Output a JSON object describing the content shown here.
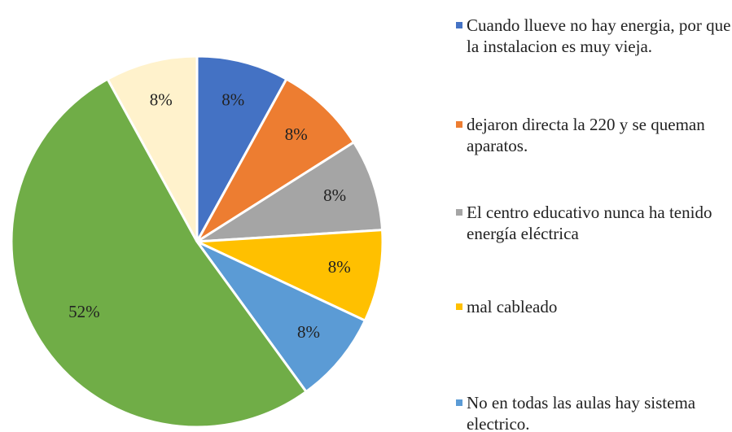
{
  "chart_data": {
    "type": "pie",
    "categories": [
      "Cuando llueve no hay energia, por que la instalacion es muy vieja.",
      "dejaron directa la 220 y se queman aparatos.",
      "El centro educativo nunca ha tenido energía eléctrica",
      "mal cableado",
      "No en todas las aulas hay sistema electrico.",
      null,
      null
    ],
    "values": [
      8,
      8,
      8,
      8,
      8,
      52,
      8
    ],
    "value_labels": [
      "8%",
      "8%",
      "8%",
      "8%",
      "8%",
      "52%",
      "8%"
    ],
    "colors": [
      "#4472c4",
      "#ed7d31",
      "#a5a5a5",
      "#ffc000",
      "#5b9bd5",
      "#70ad47",
      "#fff2cc"
    ],
    "legend": "right"
  }
}
